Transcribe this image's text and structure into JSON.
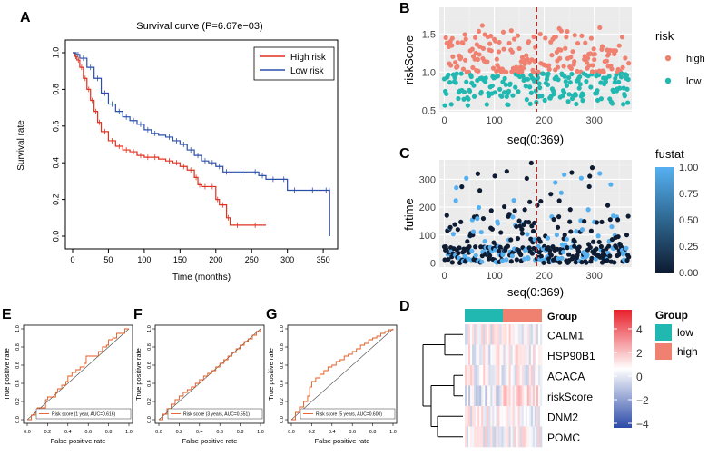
{
  "panels": {
    "A": "A",
    "B": "B",
    "C": "C",
    "D": "D",
    "E": "E",
    "F": "F",
    "G": "G"
  },
  "colors": {
    "high": "#f08070",
    "low": "#20b8b0",
    "high_line": "#e0301e",
    "low_line": "#2a4fa8",
    "fustat_low": "#0e1c33",
    "fustat_high": "#56b0f0",
    "cutoff": "#cc2222",
    "heat_low": "#2b4aa8",
    "heat_mid": "#ffffff",
    "heat_high": "#e8202a",
    "roc": "#e05a20"
  },
  "chart_data": [
    {
      "id": "A",
      "type": "line",
      "title": "Survival curve (P=6.67e−03)",
      "xlabel": "Time (months)",
      "ylabel": "Survival rate",
      "xlim": [
        0,
        360
      ],
      "ylim": [
        0,
        1
      ],
      "xticks": [
        "0",
        "50",
        "100",
        "150",
        "200",
        "250",
        "300",
        "350"
      ],
      "yticks": [
        "0.0",
        "0.2",
        "0.4",
        "0.6",
        "0.8",
        "1.0"
      ],
      "legend": [
        "High risk",
        "Low risk"
      ],
      "legend_position": "top-right",
      "series": [
        {
          "name": "High risk",
          "x": [
            0,
            3,
            6,
            10,
            15,
            20,
            25,
            30,
            35,
            40,
            50,
            60,
            70,
            80,
            90,
            100,
            110,
            120,
            130,
            140,
            150,
            160,
            170,
            175,
            180,
            190,
            200,
            205,
            215,
            220,
            240,
            270
          ],
          "y": [
            1,
            0.98,
            0.96,
            0.92,
            0.86,
            0.8,
            0.74,
            0.68,
            0.62,
            0.57,
            0.52,
            0.49,
            0.47,
            0.46,
            0.44,
            0.43,
            0.43,
            0.42,
            0.41,
            0.4,
            0.38,
            0.36,
            0.32,
            0.28,
            0.27,
            0.27,
            0.2,
            0.17,
            0.1,
            0.06,
            0.06,
            0.06
          ]
        },
        {
          "name": "Low risk",
          "x": [
            0,
            5,
            10,
            20,
            30,
            40,
            50,
            60,
            70,
            80,
            90,
            100,
            110,
            120,
            130,
            140,
            150,
            160,
            170,
            180,
            190,
            200,
            210,
            220,
            250,
            260,
            270,
            290,
            300,
            320,
            350,
            358,
            359
          ],
          "y": [
            1,
            0.99,
            0.97,
            0.92,
            0.86,
            0.78,
            0.72,
            0.68,
            0.65,
            0.63,
            0.61,
            0.58,
            0.56,
            0.55,
            0.54,
            0.52,
            0.5,
            0.47,
            0.44,
            0.41,
            0.4,
            0.38,
            0.35,
            0.35,
            0.35,
            0.33,
            0.31,
            0.31,
            0.25,
            0.25,
            0.25,
            0.25,
            0
          ]
        }
      ]
    },
    {
      "id": "B",
      "type": "scatter",
      "xlabel": "seq(0:369)",
      "ylabel": "riskScore",
      "xticks": [
        "0",
        "100",
        "200",
        "300"
      ],
      "yticks": [
        "0.5",
        "1.0",
        "1.5"
      ],
      "xlim": [
        -10,
        375
      ],
      "ylim": [
        0.48,
        1.85
      ],
      "cutoff_x": 185,
      "legend_title": "risk",
      "legend": [
        "high",
        "low"
      ],
      "n_points": 370,
      "threshold": 1.0
    },
    {
      "id": "C",
      "type": "scatter",
      "xlabel": "seq(0:369)",
      "ylabel": "futime",
      "xticks": [
        "0",
        "100",
        "200",
        "300"
      ],
      "yticks": [
        "0",
        "100",
        "200",
        "300"
      ],
      "xlim": [
        -10,
        375
      ],
      "ylim": [
        -15,
        370
      ],
      "cutoff_x": 185,
      "legend_title": "fustat",
      "legend_ticks": [
        "1.00",
        "0.75",
        "0.50",
        "0.25",
        "0.00"
      ]
    },
    {
      "id": "D",
      "type": "heatmap",
      "annotation_row": "Group",
      "rows": [
        "CALM1",
        "HSP90B1",
        "ACACA",
        "riskScore",
        "DNM2",
        "POMC"
      ],
      "legend_title": "Group",
      "legend": [
        "low",
        "high"
      ],
      "color_ticks": [
        "4",
        "2",
        "0",
        "−2",
        "−4"
      ],
      "columns": 370
    },
    {
      "id": "E",
      "type": "line",
      "xlabel": "False positive rate",
      "ylabel": "True positive rate",
      "xticks": [
        "0.0",
        "0.2",
        "0.4",
        "0.6",
        "0.8",
        "1.0"
      ],
      "yticks": [
        "0.0",
        "0.2",
        "0.4",
        "0.6",
        "0.8",
        "1.0"
      ],
      "legend": "Risk score (1 year, AUC=0.616)",
      "x": [
        0,
        0.02,
        0.04,
        0.06,
        0.08,
        0.1,
        0.14,
        0.18,
        0.2,
        0.24,
        0.28,
        0.3,
        0.34,
        0.38,
        0.4,
        0.44,
        0.48,
        0.52,
        0.56,
        0.58,
        0.62,
        0.66,
        0.7,
        0.74,
        0.78,
        0.8,
        0.84,
        0.88,
        0.92,
        0.96,
        1.0
      ],
      "y": [
        0,
        0,
        0.05,
        0.05,
        0.08,
        0.13,
        0.13,
        0.22,
        0.25,
        0.25,
        0.3,
        0.34,
        0.38,
        0.42,
        0.48,
        0.52,
        0.55,
        0.58,
        0.62,
        0.7,
        0.7,
        0.7,
        0.75,
        0.8,
        0.82,
        0.88,
        0.9,
        0.95,
        0.95,
        1.0,
        1.0
      ]
    },
    {
      "id": "F",
      "type": "line",
      "xlabel": "False positive rate",
      "ylabel": "True positive rate",
      "xticks": [
        "0.0",
        "0.2",
        "0.4",
        "0.6",
        "0.8",
        "1.0"
      ],
      "yticks": [
        "0.0",
        "0.2",
        "0.4",
        "0.6",
        "0.8",
        "1.0"
      ],
      "legend": "Risk score (3 years, AUC=0.551)",
      "x": [
        0,
        0.04,
        0.08,
        0.12,
        0.16,
        0.2,
        0.24,
        0.28,
        0.32,
        0.36,
        0.4,
        0.44,
        0.48,
        0.52,
        0.56,
        0.6,
        0.64,
        0.68,
        0.72,
        0.76,
        0.8,
        0.84,
        0.88,
        0.92,
        0.96,
        1.0
      ],
      "y": [
        0,
        0.06,
        0.12,
        0.17,
        0.22,
        0.26,
        0.3,
        0.33,
        0.36,
        0.4,
        0.44,
        0.48,
        0.51,
        0.54,
        0.58,
        0.62,
        0.66,
        0.7,
        0.74,
        0.78,
        0.82,
        0.86,
        0.89,
        0.93,
        0.97,
        1.0
      ]
    },
    {
      "id": "G",
      "type": "line",
      "xlabel": "False positive rate",
      "ylabel": "True positive rate",
      "xticks": [
        "0.0",
        "0.2",
        "0.4",
        "0.6",
        "0.8",
        "1.0"
      ],
      "yticks": [
        "0.0",
        "0.2",
        "0.4",
        "0.6",
        "0.8",
        "1.0"
      ],
      "legend": "Risk score (5 years, AUC=0.600)",
      "x": [
        0,
        0.04,
        0.08,
        0.12,
        0.16,
        0.18,
        0.2,
        0.24,
        0.28,
        0.32,
        0.36,
        0.4,
        0.44,
        0.48,
        0.52,
        0.56,
        0.6,
        0.64,
        0.68,
        0.72,
        0.76,
        0.8,
        0.84,
        0.88,
        0.92,
        0.96,
        1.0
      ],
      "y": [
        0,
        0.08,
        0.14,
        0.2,
        0.26,
        0.36,
        0.42,
        0.46,
        0.5,
        0.54,
        0.58,
        0.6,
        0.64,
        0.66,
        0.7,
        0.72,
        0.75,
        0.78,
        0.82,
        0.84,
        0.88,
        0.9,
        0.92,
        0.95,
        0.97,
        0.99,
        1.0
      ]
    }
  ]
}
